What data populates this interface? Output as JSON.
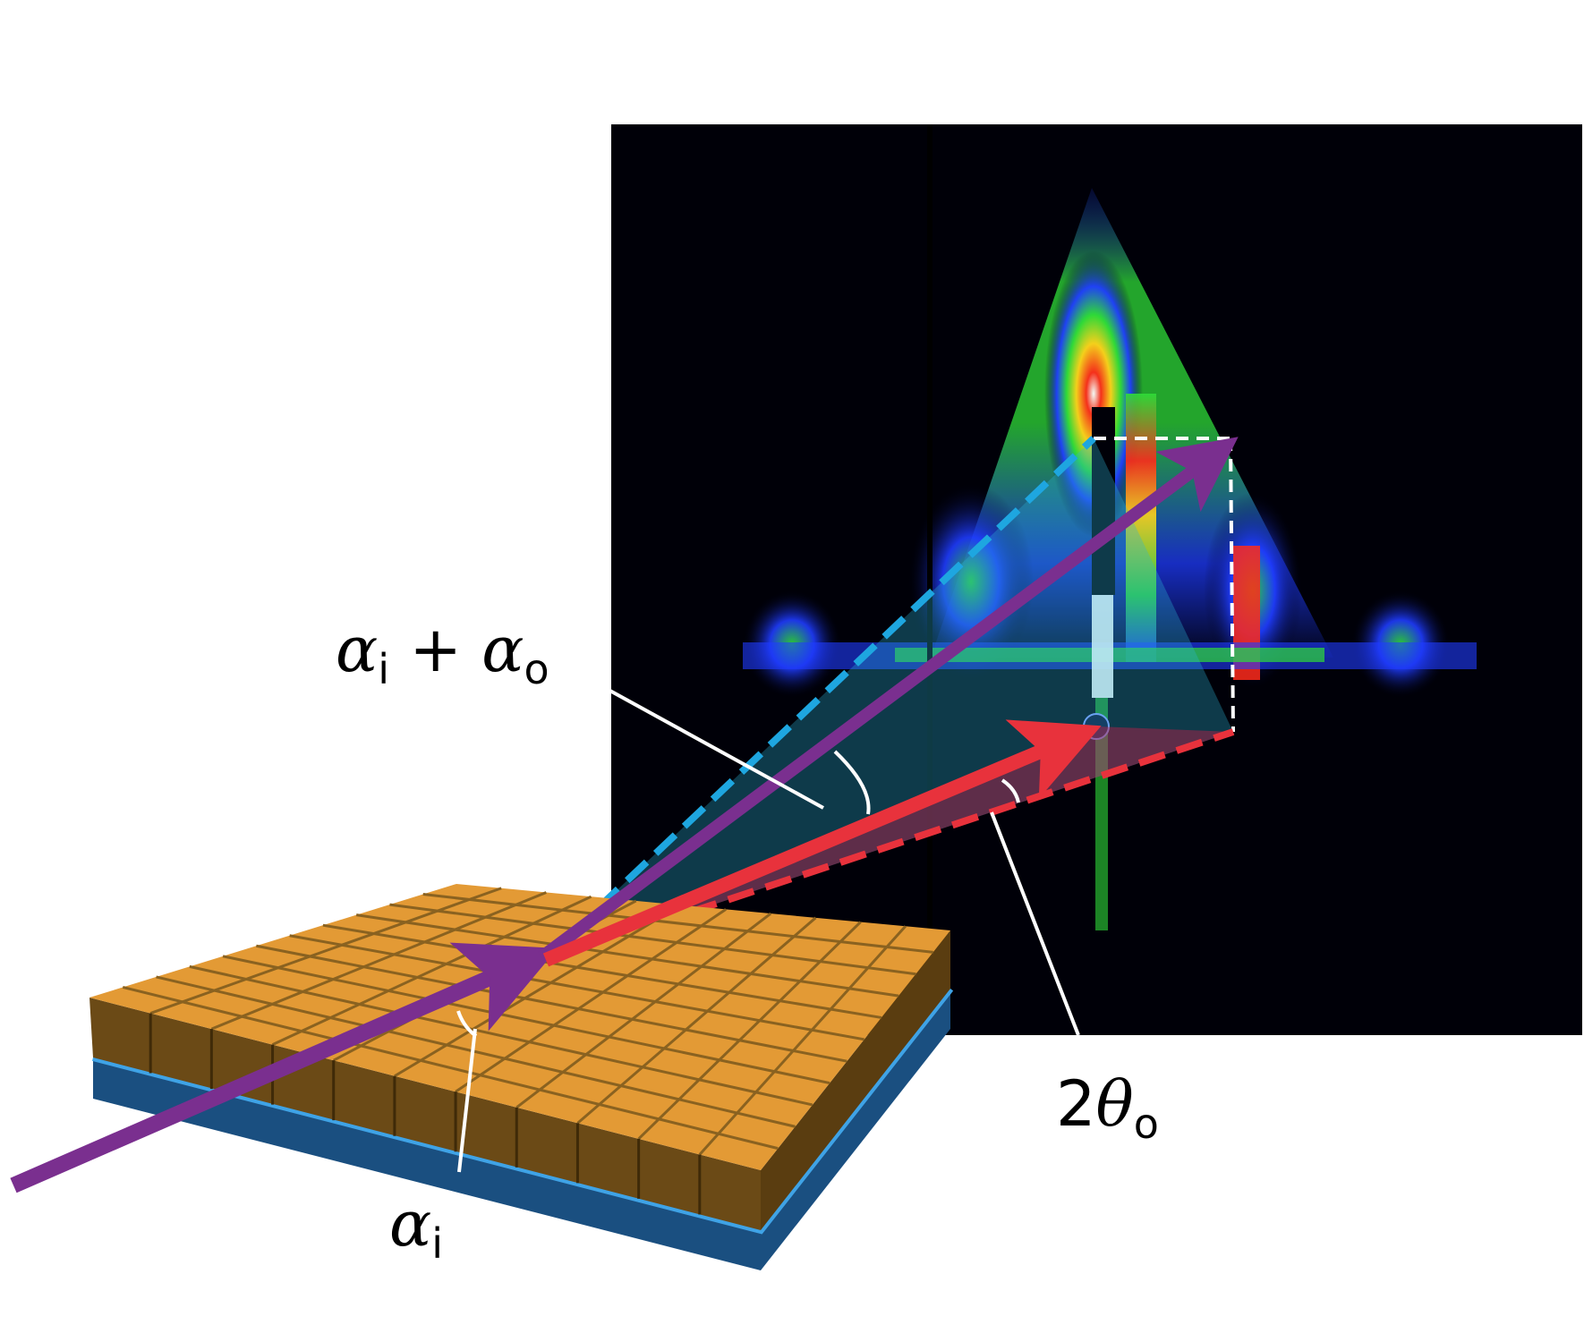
{
  "labels": {
    "sum": {
      "alpha": "α",
      "i": "i",
      "plus": " + ",
      "alpha2": "α",
      "o": "o"
    },
    "two_theta": {
      "two": "2",
      "theta": "θ",
      "o": "o"
    },
    "incident": {
      "alpha": "α",
      "i": "i"
    }
  },
  "colors": {
    "incident_beam": "#7a2f8f",
    "exit_beam": "#e8323c",
    "dashed_exit": "#1ea6e0",
    "dashed_inplane": "#e8323c",
    "projection_box": "#ffffff",
    "sample_top": "#e39a35",
    "sample_side": "#6b4a16",
    "substrate": "#1a4f80",
    "substrate_edge": "#3fa3e6",
    "detector_background": "#000008"
  },
  "icons": {
    "incident": "arrow-right-icon",
    "scattered": "arrow-right-icon"
  }
}
